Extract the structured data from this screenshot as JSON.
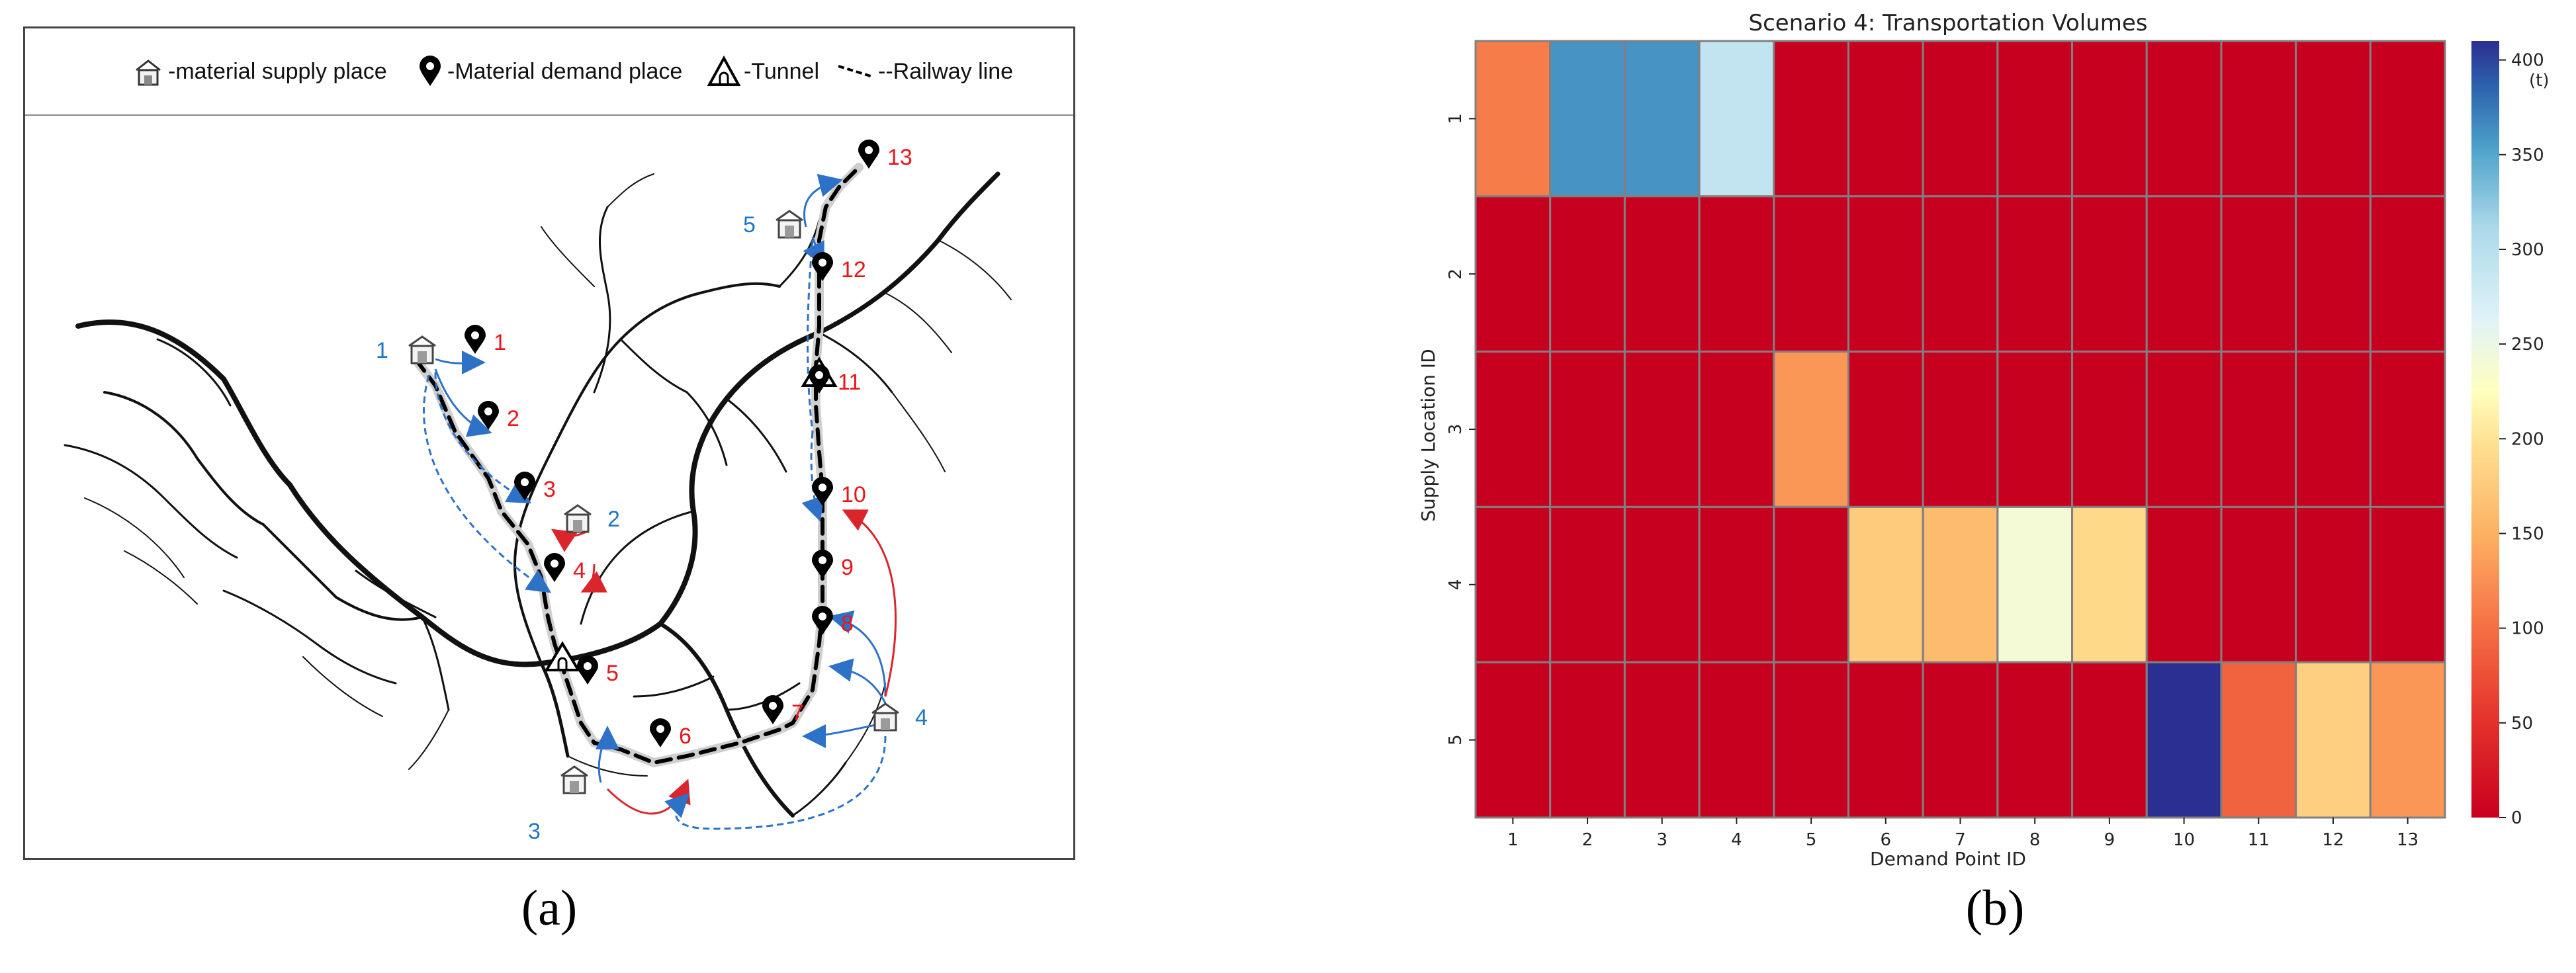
{
  "panel_a": {
    "legend": {
      "supply": "-material supply place",
      "demand": "-Material demand place",
      "tunnel": "-Tunnel",
      "railway": "--Railway line"
    },
    "caption": "(a)",
    "supply_points": [
      "1",
      "2",
      "3",
      "4",
      "5"
    ],
    "demand_points": [
      "1",
      "2",
      "3",
      "4",
      "5",
      "6",
      "7",
      "8",
      "9",
      "10",
      "11",
      "12",
      "13"
    ],
    "colors": {
      "supply_label": "#1f77c4",
      "demand_label": "#e8161b",
      "route_blue": "#2e72c8",
      "route_red": "#d9252b"
    }
  },
  "panel_b": {
    "caption": "(b)"
  },
  "chart_data": {
    "type": "heatmap",
    "title": "Scenario 4: Transportation Volumes",
    "xlabel": "Demand Point ID",
    "ylabel": "Supply Location ID",
    "x_categories": [
      "1",
      "2",
      "3",
      "4",
      "5",
      "6",
      "7",
      "8",
      "9",
      "10",
      "11",
      "12",
      "13"
    ],
    "y_categories": [
      "1",
      "2",
      "3",
      "4",
      "5"
    ],
    "values": [
      [
        110,
        360,
        360,
        290,
        0,
        0,
        0,
        0,
        0,
        0,
        0,
        0,
        0
      ],
      [
        0,
        0,
        0,
        0,
        0,
        0,
        0,
        0,
        0,
        0,
        0,
        0,
        0
      ],
      [
        0,
        0,
        0,
        0,
        130,
        0,
        0,
        0,
        0,
        0,
        0,
        0,
        0
      ],
      [
        0,
        0,
        0,
        0,
        0,
        175,
        160,
        240,
        190,
        0,
        0,
        0,
        0
      ],
      [
        0,
        0,
        0,
        0,
        0,
        0,
        0,
        0,
        0,
        410,
        90,
        180,
        130
      ]
    ],
    "colorbar": {
      "min": 0,
      "max": 410,
      "ticks": [
        "0",
        "50",
        "100",
        "150",
        "200",
        "250",
        "300",
        "350",
        "400"
      ],
      "unit": "(t)"
    },
    "colorscale": "RdYlBu",
    "grid": true
  }
}
